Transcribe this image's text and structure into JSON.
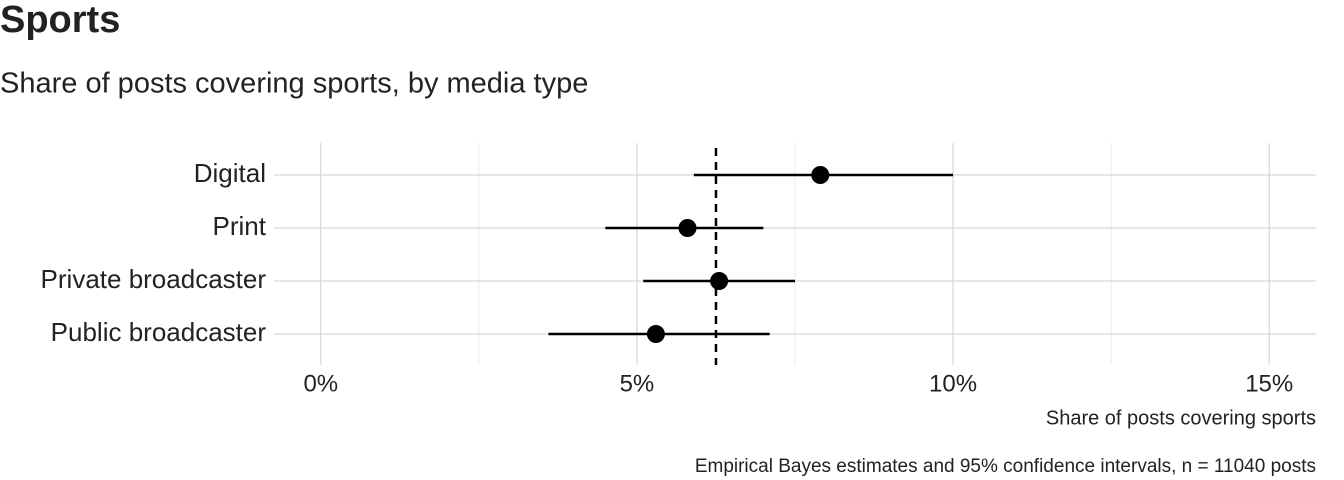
{
  "chart_data": {
    "type": "dot_errorbar",
    "title": "Sports",
    "subtitle": "Share of posts covering sports, by media type",
    "x_label": "Share of posts covering sports",
    "caption": "Empirical Bayes estimates and 95% confidence intervals, n = 11040 posts",
    "categories": [
      "Digital",
      "Print",
      "Private broadcaster",
      "Public broadcaster"
    ],
    "values": [
      7.9,
      5.8,
      6.3,
      5.3
    ],
    "lower": [
      5.9,
      4.5,
      5.1,
      3.6
    ],
    "upper": [
      10.0,
      7.0,
      7.5,
      7.1
    ],
    "reference_line": 6.25,
    "color": "#000000",
    "xlim": [
      -0.74,
      15.74
    ],
    "xticks": [
      {
        "value": 0,
        "label": "0%"
      },
      {
        "value": 5,
        "label": "5%"
      },
      {
        "value": 10,
        "label": "10%"
      },
      {
        "value": 15,
        "label": "15%"
      }
    ],
    "xminor": [
      2.5,
      7.5,
      12.5
    ],
    "grid": true
  }
}
